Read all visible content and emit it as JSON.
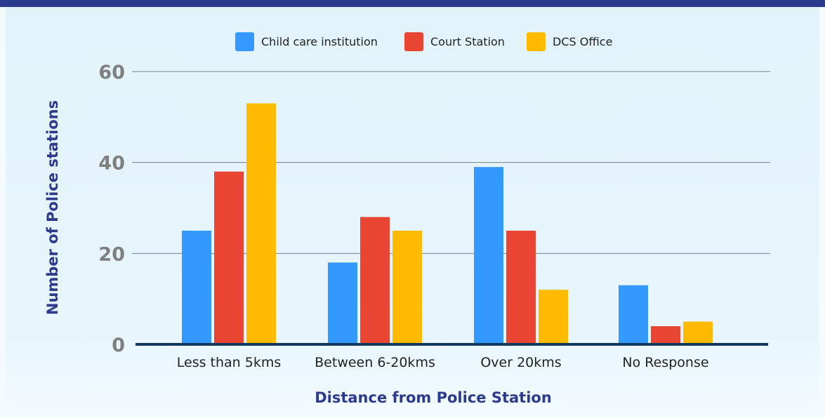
{
  "chart_data": {
    "type": "bar",
    "categories": [
      "Less than 5kms",
      "Between 6-20kms",
      "Over 20kms",
      "No Response"
    ],
    "series": [
      {
        "name": "Child care institution",
        "color": "#3399ff",
        "values": [
          25,
          18,
          39,
          13
        ]
      },
      {
        "name": "Court Station",
        "color": "#e84533",
        "values": [
          38,
          28,
          25,
          4
        ]
      },
      {
        "name": "DCS Office",
        "color": "#ffbb00",
        "values": [
          53,
          25,
          12,
          5
        ]
      }
    ],
    "xlabel": "Distance from Police Station",
    "ylabel": "Number of Police stations",
    "ylim": [
      0,
      60
    ],
    "yticks": [
      "0",
      "20",
      "40",
      "60"
    ],
    "grid": true,
    "legend_position": "top"
  },
  "colors": {
    "header_bar": "#2a3a8c",
    "axis_title": "#2b3a8e",
    "baseline": "#123a5c",
    "gridline": "#6f7f8f"
  }
}
